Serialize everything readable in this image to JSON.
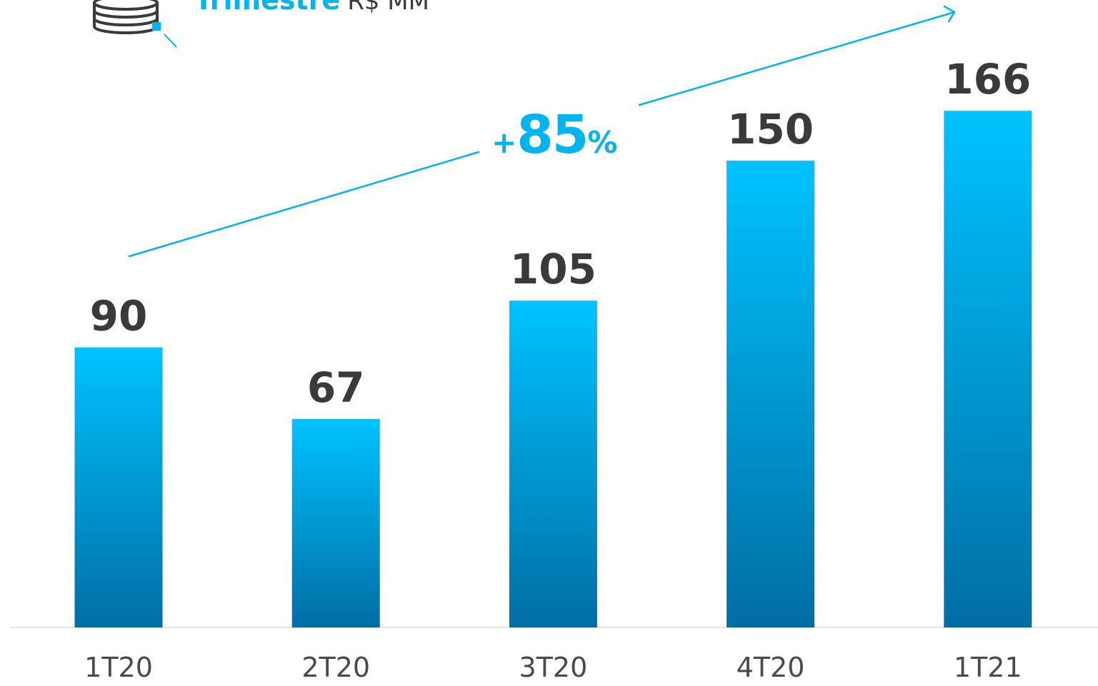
{
  "header": {
    "title": "Trimestre",
    "unit": "R$ MM",
    "icon": "coin-stack-icon"
  },
  "growth": {
    "sign": "+",
    "value": "85",
    "suffix": "%"
  },
  "colors": {
    "accent": "#00b4f0",
    "bar_top": "#00c3ff",
    "bar_bottom": "#006ea4",
    "value_text": "#3a3a3a",
    "category_text": "#4a4a4a",
    "baseline": "#e6e6e6"
  },
  "chart_data": {
    "type": "bar",
    "categories": [
      "1T20",
      "2T20",
      "3T20",
      "4T20",
      "1T21"
    ],
    "values": [
      90,
      67,
      105,
      150,
      166
    ],
    "data_labels": [
      "90",
      "67",
      "105",
      "150",
      "166"
    ],
    "title": "Trimestre",
    "unit": "R$ MM",
    "xlabel": "",
    "ylabel": "",
    "grid": false,
    "legend": "none",
    "annotation": "+85%"
  }
}
